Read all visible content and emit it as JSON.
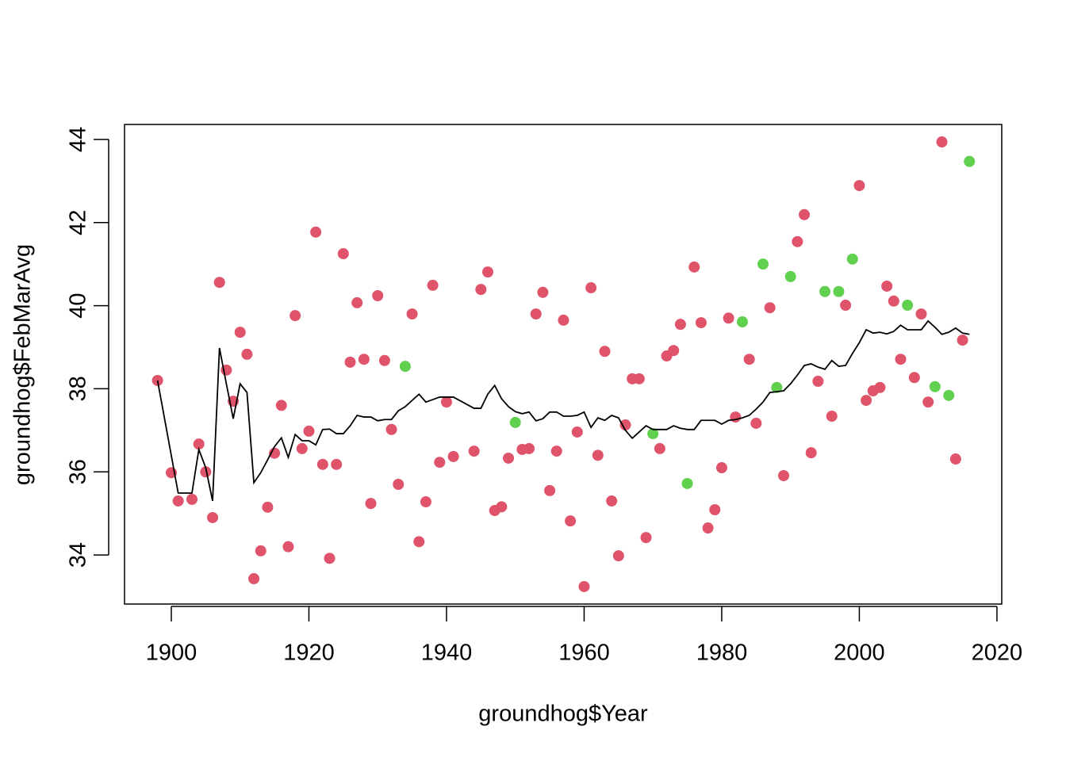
{
  "chart_data": {
    "type": "scatter",
    "xlabel": "groundhog$Year",
    "ylabel": "groundhog$FebMarAvg",
    "xlim": [
      1893.2,
      2020.7
    ],
    "ylim": [
      32.82,
      44.36
    ],
    "xticks": [
      1900,
      1920,
      1940,
      1960,
      1980,
      2000,
      2020
    ],
    "yticks": [
      34,
      36,
      38,
      40,
      42,
      44
    ],
    "series": [
      {
        "color": "#DF536B",
        "type": "scatter",
        "x": [
          1898,
          1900,
          1901,
          1903,
          1904,
          1905,
          1906,
          1907,
          1908,
          1909,
          1910,
          1911,
          1912,
          1913,
          1914,
          1915,
          1916,
          1917,
          1918,
          1919,
          1920,
          1921,
          1922,
          1923,
          1924,
          1925,
          1926,
          1927,
          1928,
          1929,
          1930,
          1931,
          1932,
          1933,
          1935,
          1936,
          1937,
          1938,
          1939,
          1940,
          1941,
          1944,
          1945,
          1946,
          1947,
          1948,
          1949,
          1951,
          1952,
          1953,
          1954,
          1955,
          1956,
          1957,
          1958,
          1959,
          1960,
          1961,
          1962,
          1963,
          1964,
          1965,
          1966,
          1967,
          1968,
          1969,
          1971,
          1972,
          1973,
          1974,
          1976,
          1977,
          1978,
          1979,
          1980,
          1981,
          1982,
          1984,
          1985,
          1987,
          1989,
          1991,
          1992,
          1993,
          1994,
          1996,
          1998,
          2000,
          2001,
          2002,
          2003,
          2004,
          2005,
          2006,
          2008,
          2009,
          2010,
          2012,
          2014,
          2015
        ],
        "values": [
          38.2,
          35.98,
          35.3,
          35.34,
          36.67,
          36.0,
          34.9,
          40.56,
          38.45,
          37.7,
          39.36,
          38.83,
          33.43,
          34.1,
          35.15,
          36.45,
          37.6,
          34.2,
          39.76,
          36.56,
          36.98,
          41.77,
          36.18,
          33.92,
          36.18,
          41.25,
          38.64,
          40.07,
          38.71,
          35.24,
          40.24,
          38.68,
          37.02,
          35.7,
          39.8,
          34.32,
          35.28,
          40.49,
          36.23,
          37.68,
          36.37,
          36.5,
          40.39,
          40.81,
          35.07,
          35.16,
          36.33,
          36.54,
          36.56,
          39.8,
          40.32,
          35.55,
          36.5,
          39.65,
          34.82,
          36.96,
          33.24,
          40.43,
          36.4,
          38.9,
          35.3,
          33.98,
          37.13,
          38.24,
          38.24,
          34.42,
          36.56,
          38.79,
          38.92,
          39.55,
          40.93,
          39.59,
          34.65,
          35.09,
          36.1,
          39.7,
          37.32,
          38.71,
          37.17,
          39.95,
          35.91,
          41.54,
          42.19,
          36.46,
          38.18,
          37.34,
          40.01,
          42.89,
          37.72,
          37.95,
          38.03,
          40.47,
          40.11,
          38.71,
          38.27,
          39.8,
          37.68,
          43.94,
          36.31,
          39.17
        ]
      },
      {
        "color": "#61D04F",
        "type": "scatter",
        "x": [
          1934,
          1950,
          1970,
          1975,
          1983,
          1986,
          1988,
          1990,
          1995,
          1997,
          1999,
          2007,
          2011,
          2013,
          2016
        ],
        "values": [
          38.54,
          37.19,
          36.92,
          35.72,
          39.61,
          41.0,
          38.03,
          40.7,
          40.34,
          40.34,
          41.12,
          40.01,
          38.05,
          37.84,
          43.47
        ]
      },
      {
        "color": "#000000",
        "type": "line",
        "x": [
          1898,
          1901,
          1903,
          1904,
          1905,
          1906,
          1907,
          1908,
          1909,
          1910,
          1911,
          1912,
          1913,
          1914,
          1915,
          1916,
          1917,
          1918,
          1919,
          1920,
          1921,
          1922,
          1923,
          1924,
          1925,
          1926,
          1927,
          1928,
          1929,
          1930,
          1931,
          1932,
          1933,
          1934,
          1935,
          1936,
          1937,
          1938,
          1939,
          1940,
          1941,
          1944,
          1945,
          1946,
          1947,
          1948,
          1949,
          1950,
          1951,
          1952,
          1953,
          1954,
          1955,
          1956,
          1957,
          1958,
          1959,
          1960,
          1961,
          1962,
          1963,
          1964,
          1965,
          1966,
          1967,
          1968,
          1969,
          1970,
          1971,
          1972,
          1973,
          1974,
          1975,
          1976,
          1977,
          1978,
          1979,
          1980,
          1981,
          1982,
          1983,
          1984,
          1985,
          1986,
          1987,
          1988,
          1989,
          1990,
          1991,
          1992,
          1993,
          1994,
          1995,
          1996,
          1997,
          1998,
          1999,
          2000,
          2001,
          2002,
          2003,
          2004,
          2005,
          2006,
          2007,
          2008,
          2009,
          2010,
          2011,
          2012,
          2013,
          2014,
          2015,
          2016
        ],
        "values": [
          38.2,
          35.49,
          35.49,
          36.54,
          36.1,
          35.3,
          38.98,
          38.12,
          37.28,
          38.12,
          37.91,
          35.74,
          35.98,
          36.29,
          36.61,
          36.82,
          36.35,
          36.9,
          36.75,
          36.75,
          36.65,
          37.02,
          37.03,
          36.92,
          36.92,
          37.11,
          37.36,
          37.32,
          37.32,
          37.23,
          37.26,
          37.26,
          37.47,
          37.57,
          37.72,
          37.87,
          37.68,
          37.74,
          37.8,
          37.8,
          37.8,
          37.53,
          37.53,
          37.87,
          38.08,
          37.76,
          37.57,
          37.45,
          37.4,
          37.44,
          37.23,
          37.28,
          37.44,
          37.44,
          37.34,
          37.34,
          37.36,
          37.44,
          37.07,
          37.3,
          37.24,
          37.36,
          37.3,
          37.0,
          36.81,
          36.96,
          37.11,
          37.02,
          37.02,
          37.02,
          37.11,
          37.05,
          37.02,
          37.02,
          37.24,
          37.24,
          37.24,
          37.15,
          37.24,
          37.26,
          37.3,
          37.36,
          37.51,
          37.68,
          37.91,
          37.93,
          37.95,
          38.12,
          38.33,
          38.56,
          38.6,
          38.52,
          38.47,
          38.68,
          38.54,
          38.56,
          38.85,
          39.11,
          39.42,
          39.34,
          39.36,
          39.32,
          39.38,
          39.53,
          39.42,
          39.42,
          39.42,
          39.63,
          39.48,
          39.31,
          39.36,
          39.46,
          39.34,
          39.31
        ]
      }
    ]
  }
}
